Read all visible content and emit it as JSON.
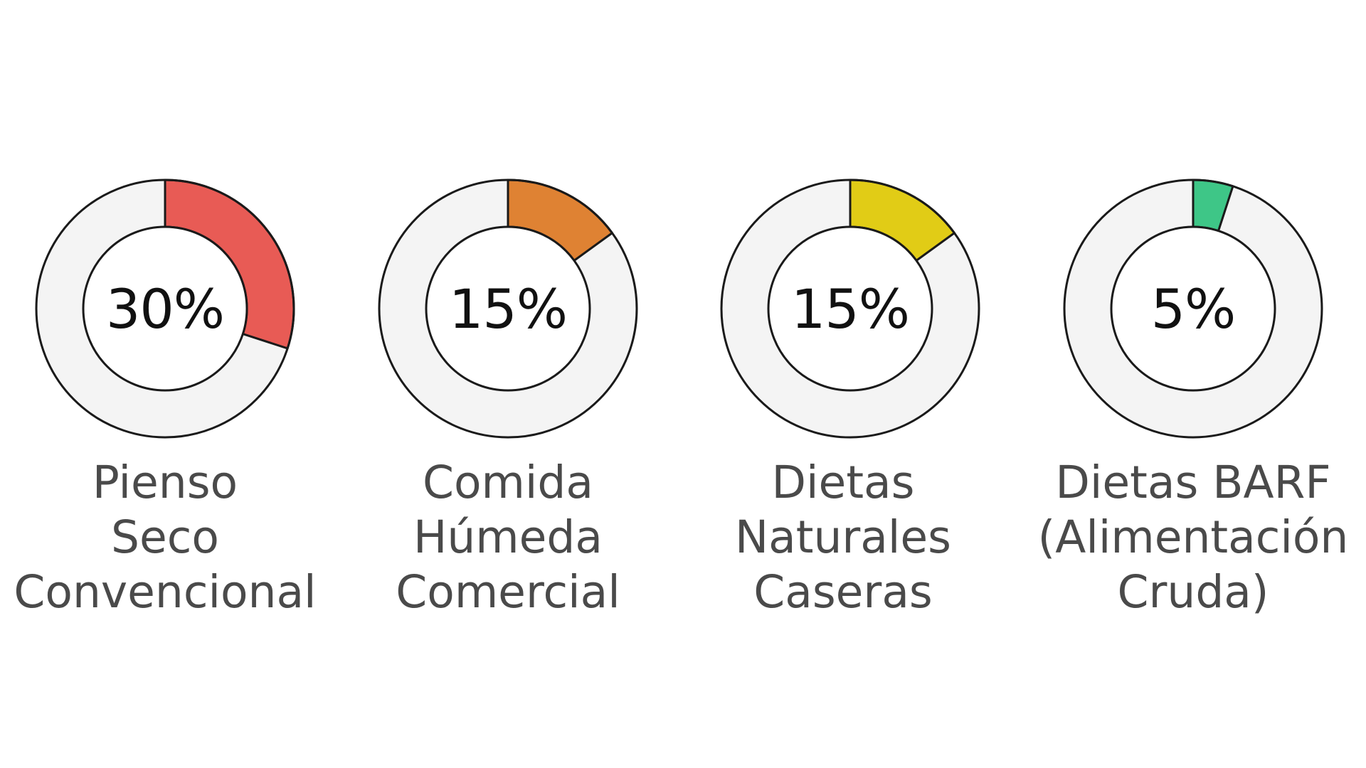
{
  "chart_data": [
    {
      "type": "pie",
      "value": 30,
      "max": 100,
      "value_label": "30%",
      "label_lines": [
        "Pienso",
        "Seco",
        "Convencional"
      ],
      "color": "#e85b55"
    },
    {
      "type": "pie",
      "value": 15,
      "max": 100,
      "value_label": "15%",
      "label_lines": [
        "Comida",
        "Húmeda",
        "Comercial"
      ],
      "color": "#df8233"
    },
    {
      "type": "pie",
      "value": 15,
      "max": 100,
      "value_label": "15%",
      "label_lines": [
        "Dietas",
        "Naturales",
        "Caseras"
      ],
      "color": "#e1cc16"
    },
    {
      "type": "pie",
      "value": 5,
      "max": 100,
      "value_label": "5%",
      "label_lines": [
        "Dietas BARF",
        "(Alimentación",
        "Cruda)"
      ],
      "color": "#3ec687"
    }
  ],
  "style": {
    "track_color": "#f4f4f4",
    "outline_color": "#1a1a1a",
    "value_text_color": "#111111",
    "label_text_color": "#4a4a4a",
    "background": "#ffffff"
  }
}
